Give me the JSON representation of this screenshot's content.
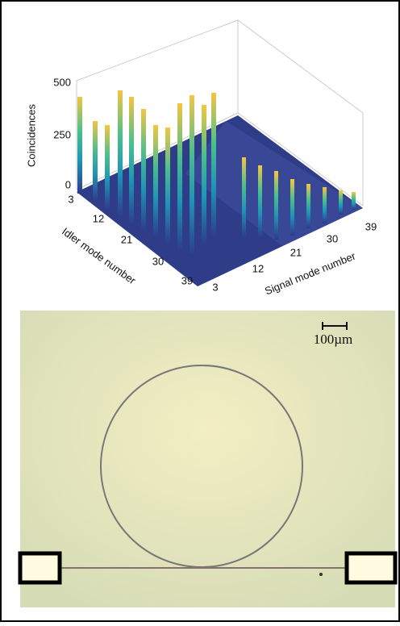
{
  "plot": {
    "z_label": "Coincidences",
    "z_ticks": [
      "0",
      "250",
      "500"
    ],
    "x_label": "Idler mode number",
    "x_ticks": [
      "3",
      "12",
      "21",
      "30",
      "39"
    ],
    "y_label": "Signal mode number",
    "y_ticks": [
      "3",
      "12",
      "21",
      "30",
      "39"
    ]
  },
  "micrograph": {
    "scale_bar": "100µm"
  }
}
